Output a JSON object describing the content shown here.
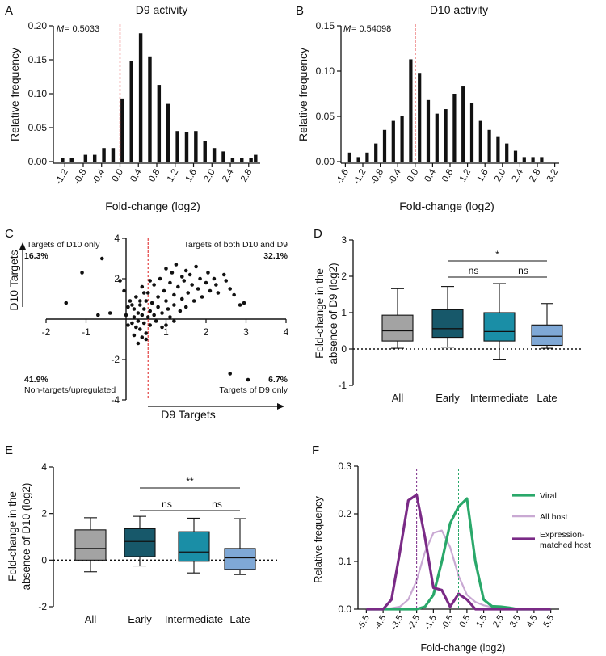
{
  "colors": {
    "black": "#111111",
    "red_dash": "#e03030",
    "grey_box": "#a3a3a3",
    "early_box": "#17586a",
    "intermediate_box": "#1a8ea6",
    "late_box": "#7fa8d6",
    "viral": "#2aa86a",
    "all_host": "#c9a9d3",
    "matched_host": "#7a2a86",
    "green_dash": "#2aa86a",
    "purple_dash": "#7a2a86"
  },
  "chart_data": [
    {
      "panel": "A",
      "type": "bar",
      "title": "D9 activity",
      "annotation_label": "M",
      "annotation_value": "= 0.5033",
      "xlabel": "Fold-change (log2)",
      "ylabel": "Relative frequency",
      "xlim": [
        -1.45,
        3.05
      ],
      "ylim": [
        0,
        0.2
      ],
      "bin_width": 0.1,
      "median": 0.0,
      "yticks": [
        "0.00",
        "0.05",
        "0.10",
        "0.15",
        "0.20"
      ],
      "xticks": [
        "-1.2",
        "-0.8",
        "-0.4",
        "0.0",
        "0.4",
        "0.8",
        "1.2",
        "1.6",
        "2.0",
        "2.4",
        "2.8"
      ],
      "bin_centers": [
        -1.35,
        -1.25,
        -1.15,
        -1.05,
        -0.95,
        -0.85,
        -0.75,
        -0.65,
        -0.55,
        -0.45,
        -0.35,
        -0.25,
        -0.15,
        -0.05,
        0.05,
        0.15,
        0.25,
        0.35,
        0.45,
        0.55,
        0.65,
        0.75,
        0.85,
        0.95,
        1.05,
        1.15,
        1.25,
        1.35,
        1.45,
        1.55,
        1.65,
        1.75,
        1.85,
        1.95,
        2.05,
        2.15,
        2.25,
        2.35,
        2.45,
        2.55,
        2.65,
        2.75,
        2.85,
        2.95
      ],
      "values": [
        0,
        0.005,
        0,
        0.005,
        0,
        0,
        0.01,
        0,
        0.01,
        0,
        0.02,
        0,
        0.02,
        0,
        0.093,
        0,
        0.148,
        0,
        0.189,
        0,
        0.155,
        0,
        0.113,
        0,
        0.085,
        0,
        0.045,
        0,
        0.043,
        0,
        0.045,
        0,
        0.03,
        0,
        0.02,
        0,
        0.015,
        0,
        0.005,
        0,
        0.005,
        0,
        0.005,
        0.01
      ]
    },
    {
      "panel": "B",
      "type": "bar",
      "title": "D10 activity",
      "annotation_label": "M",
      "annotation_value": "= 0.54098",
      "xlabel": "Fold-change (log2)",
      "ylabel": "Relative frequency",
      "xlim": [
        -1.7,
        3.3
      ],
      "ylim": [
        0,
        0.15
      ],
      "bin_width": 0.1,
      "median": 0.0,
      "yticks": [
        "0.00",
        "0.05",
        "0.10",
        "0.15"
      ],
      "xticks": [
        "-1.6",
        "-1.2",
        "-0.8",
        "-0.4",
        "0.0",
        "0.4",
        "0.8",
        "1.2",
        "1.6",
        "2.0",
        "2.4",
        "2.8",
        "3.2"
      ],
      "bin_centers": [
        -1.5,
        -1.3,
        -1.1,
        -0.9,
        -0.7,
        -0.5,
        -0.3,
        -0.1,
        0.1,
        0.3,
        0.5,
        0.7,
        0.9,
        1.1,
        1.3,
        1.5,
        1.7,
        1.9,
        2.1,
        2.3,
        2.5,
        2.7,
        2.9,
        3.1
      ],
      "values": [
        0.01,
        0.005,
        0.01,
        0.02,
        0.035,
        0.045,
        0.05,
        0.113,
        0.098,
        0.068,
        0.053,
        0.058,
        0.075,
        0.083,
        0.065,
        0.045,
        0.035,
        0.028,
        0.02,
        0.012,
        0.005,
        0.005,
        0.005,
        0
      ]
    },
    {
      "panel": "C",
      "type": "scatter",
      "xlabel": "D9 Targets",
      "ylabel": "D10 Targets",
      "xlim": [
        -2,
        4
      ],
      "ylim": [
        -4,
        4
      ],
      "xticks": [
        "-2",
        "-1",
        "1",
        "2",
        "3",
        "4"
      ],
      "yticks": [
        "4",
        "2",
        "-2",
        "-4"
      ],
      "quadrants": [
        {
          "label": "Targets of D10 only",
          "pct": "16.3%"
        },
        {
          "label": "Targets of both D10 and D9",
          "pct": "32.1%"
        },
        {
          "label": "Non-targets/upregulated",
          "pct": "41.9%"
        },
        {
          "label": "Targets of D9 only",
          "pct": "6.7%"
        }
      ],
      "threshold_x": 0.55,
      "threshold_y": 0.5,
      "points": [
        [
          -1.5,
          0.8
        ],
        [
          -1.1,
          2.3
        ],
        [
          -0.6,
          3.0
        ],
        [
          -0.7,
          0.2
        ],
        [
          -0.4,
          0.3
        ],
        [
          -0.15,
          1.9
        ],
        [
          -0.05,
          1.4
        ],
        [
          0.05,
          0.6
        ],
        [
          0.0,
          0.2
        ],
        [
          0.05,
          -0.3
        ],
        [
          0.1,
          0.9
        ],
        [
          0.15,
          -0.2
        ],
        [
          0.2,
          0.1
        ],
        [
          0.2,
          0.5
        ],
        [
          0.25,
          -0.4
        ],
        [
          0.25,
          1.1
        ],
        [
          0.3,
          0.3
        ],
        [
          0.3,
          -0.1
        ],
        [
          0.35,
          0.7
        ],
        [
          0.35,
          -0.5
        ],
        [
          0.4,
          1.6
        ],
        [
          0.4,
          0.2
        ],
        [
          0.45,
          -0.2
        ],
        [
          0.45,
          0.5
        ],
        [
          0.5,
          0.9
        ],
        [
          0.5,
          -0.7
        ],
        [
          0.55,
          0.1
        ],
        [
          0.55,
          1.3
        ],
        [
          0.6,
          0.4
        ],
        [
          0.6,
          -0.3
        ],
        [
          0.65,
          0.8
        ],
        [
          0.7,
          1.7
        ],
        [
          0.7,
          0.2
        ],
        [
          0.75,
          -0.1
        ],
        [
          0.8,
          1.1
        ],
        [
          0.8,
          0.6
        ],
        [
          0.85,
          2.0
        ],
        [
          0.9,
          0.3
        ],
        [
          0.9,
          -0.4
        ],
        [
          0.95,
          1.4
        ],
        [
          1.0,
          2.5
        ],
        [
          1.0,
          0.9
        ],
        [
          1.05,
          0.5
        ],
        [
          1.1,
          1.8
        ],
        [
          1.1,
          0.1
        ],
        [
          1.15,
          2.3
        ],
        [
          1.2,
          1.2
        ],
        [
          1.2,
          0.7
        ],
        [
          1.25,
          2.7
        ],
        [
          1.3,
          1.6
        ],
        [
          1.35,
          0.4
        ],
        [
          1.4,
          2.1
        ],
        [
          1.4,
          1.0
        ],
        [
          1.45,
          1.9
        ],
        [
          1.5,
          2.4
        ],
        [
          1.5,
          0.6
        ],
        [
          1.55,
          1.3
        ],
        [
          1.6,
          2.2
        ],
        [
          1.65,
          1.7
        ],
        [
          1.7,
          0.9
        ],
        [
          1.75,
          2.6
        ],
        [
          1.8,
          1.5
        ],
        [
          1.85,
          2.0
        ],
        [
          1.9,
          1.1
        ],
        [
          2.0,
          1.8
        ],
        [
          2.05,
          2.3
        ],
        [
          2.1,
          1.4
        ],
        [
          2.2,
          2.0
        ],
        [
          2.25,
          1.7
        ],
        [
          2.3,
          1.3
        ],
        [
          2.45,
          2.2
        ],
        [
          2.5,
          1.9
        ],
        [
          2.6,
          1.5
        ],
        [
          2.7,
          1.2
        ],
        [
          2.85,
          0.7
        ],
        [
          2.95,
          0.8
        ],
        [
          2.6,
          -2.7
        ],
        [
          3.05,
          -3.0
        ],
        [
          0.3,
          -1.2
        ],
        [
          0.5,
          -1.0
        ],
        [
          0.2,
          -0.8
        ],
        [
          0.4,
          -0.9
        ],
        [
          0.35,
          0.9
        ],
        [
          0.6,
          1.9
        ],
        [
          0.45,
          1.3
        ],
        [
          0.15,
          0.7
        ],
        [
          1.0,
          -0.3
        ],
        [
          1.2,
          -0.1
        ]
      ]
    },
    {
      "panel": "D",
      "type": "box",
      "ylabel": "Fold-change in the absence of D9 (log2)",
      "ylabel_line1": "Fold-change in the",
      "ylabel_line2": "absence of D9 (log2)",
      "ylim": [
        -1,
        3
      ],
      "yticks": [
        "-1",
        "0",
        "1",
        "2",
        "3"
      ],
      "categories": [
        "All",
        "Early",
        "Intermediate",
        "Late"
      ],
      "boxes": [
        {
          "min": 0.02,
          "q1": 0.22,
          "median": 0.5,
          "q3": 0.93,
          "max": 1.66
        },
        {
          "min": 0.05,
          "q1": 0.32,
          "median": 0.56,
          "q3": 1.08,
          "max": 1.72
        },
        {
          "min": -0.28,
          "q1": 0.22,
          "median": 0.48,
          "q3": 1.0,
          "max": 1.8
        },
        {
          "min": 0.02,
          "q1": 0.1,
          "median": 0.35,
          "q3": 0.66,
          "max": 1.25
        }
      ],
      "significance": [
        {
          "label": "*",
          "from": "Early",
          "to": "Late"
        },
        {
          "label": "ns",
          "from": "Early",
          "to": "Intermediate"
        },
        {
          "label": "ns",
          "from": "Intermediate",
          "to": "Late"
        }
      ]
    },
    {
      "panel": "E",
      "type": "box",
      "ylabel": "Fold-change in the absence of D10 (log2)",
      "ylabel_line1": "Fold-change in the",
      "ylabel_line2": "absence of D10 (log2)",
      "ylim": [
        -2,
        4
      ],
      "yticks": [
        "-2",
        "0",
        "2",
        "4"
      ],
      "categories": [
        "All",
        "Early",
        "Intermediate",
        "Late"
      ],
      "boxes": [
        {
          "min": -0.5,
          "q1": 0.0,
          "median": 0.5,
          "q3": 1.3,
          "max": 1.82
        },
        {
          "min": -0.25,
          "q1": 0.15,
          "median": 0.8,
          "q3": 1.35,
          "max": 1.88
        },
        {
          "min": -0.55,
          "q1": -0.05,
          "median": 0.35,
          "q3": 1.22,
          "max": 1.8
        },
        {
          "min": -0.62,
          "q1": -0.4,
          "median": 0.1,
          "q3": 0.5,
          "max": 1.78
        }
      ],
      "significance": [
        {
          "label": "**",
          "from": "Early",
          "to": "Late"
        },
        {
          "label": "ns",
          "from": "Early",
          "to": "Intermediate"
        },
        {
          "label": "ns",
          "from": "Intermediate",
          "to": "Late"
        }
      ]
    },
    {
      "panel": "F",
      "type": "line",
      "xlabel": "Fold-change (log2)",
      "ylabel": "Relative frequency",
      "xlim": [
        -6,
        6
      ],
      "ylim": [
        0,
        0.3
      ],
      "yticks": [
        "0.0",
        "0.1",
        "0.2",
        "0.3"
      ],
      "xticks": [
        "-5.5",
        "-4.5",
        "-3.5",
        "-2.5",
        "-1.5",
        "-0.5",
        "0.5",
        "1.5",
        "2.5",
        "3.5",
        "4.5",
        "5.5"
      ],
      "x": [
        -5.5,
        -5.0,
        -4.5,
        -4.0,
        -3.5,
        -3.0,
        -2.5,
        -2.0,
        -1.5,
        -1.0,
        -0.5,
        0.0,
        0.5,
        1.0,
        1.5,
        2.0,
        2.5,
        3.0,
        3.5,
        4.0,
        4.5,
        5.0,
        5.5
      ],
      "series": [
        {
          "name": "All host",
          "values": [
            0,
            0,
            0,
            0.002,
            0.005,
            0.02,
            0.06,
            0.12,
            0.16,
            0.165,
            0.13,
            0.07,
            0.03,
            0.015,
            0.008,
            0.004,
            0.002,
            0.001,
            0,
            0,
            0,
            0,
            0
          ]
        },
        {
          "name": "Viral",
          "values": [
            0,
            0,
            0,
            0,
            0,
            0,
            0,
            0.005,
            0.03,
            0.1,
            0.18,
            0.215,
            0.232,
            0.1,
            0.02,
            0.006,
            0.005,
            0.003,
            0,
            0,
            0,
            0,
            0
          ]
        },
        {
          "name": "Expression-matched host",
          "values": [
            0,
            0,
            0,
            0.02,
            0.12,
            0.228,
            0.24,
            0.15,
            0.045,
            0.04,
            0.005,
            0.032,
            0.02,
            0,
            0,
            0,
            0,
            0,
            0,
            0,
            0,
            0,
            0
          ]
        }
      ],
      "legend_labels": [
        "Viral",
        "All host",
        "Expression-",
        "matched host"
      ],
      "vlines": [
        {
          "x": -2.5,
          "color": "purple"
        },
        {
          "x": 0.0,
          "color": "green"
        }
      ]
    }
  ],
  "panel_letters": [
    "A",
    "B",
    "C",
    "D",
    "E",
    "F"
  ]
}
